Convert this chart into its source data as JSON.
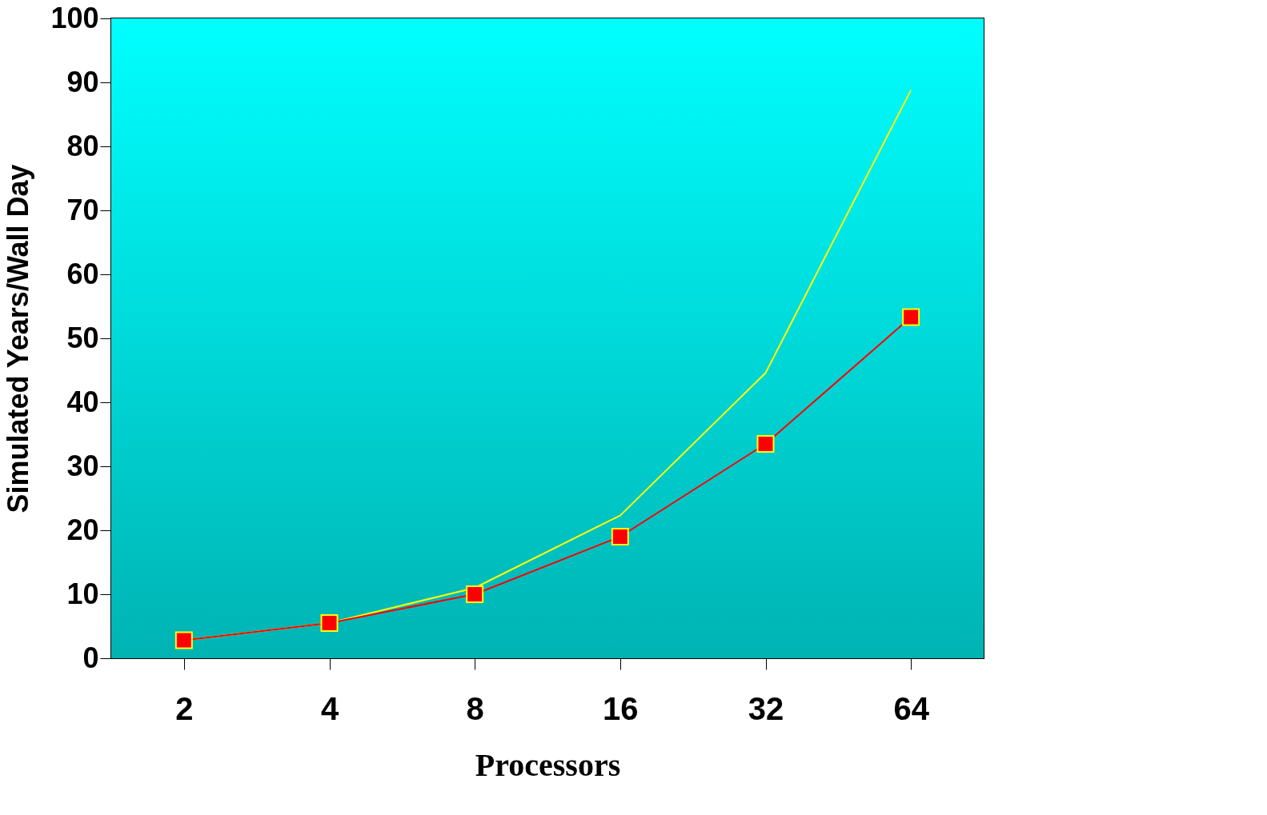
{
  "chart_data": {
    "type": "line",
    "xlabel": "Processors",
    "ylabel": "Simulated Years/Wall Day",
    "categories": [
      "2",
      "4",
      "8",
      "16",
      "32",
      "64"
    ],
    "series": [
      {
        "color": "#ffff00",
        "marker": "none",
        "values": [
          2.8,
          5.5,
          11,
          22.3,
          44.6,
          88.8
        ]
      },
      {
        "color": "#ff0000",
        "marker": "square",
        "values": [
          2.8,
          5.5,
          10,
          19,
          33.5,
          53.3
        ]
      }
    ],
    "ylim": [
      0,
      100
    ],
    "yticks": [
      0,
      10,
      20,
      30,
      40,
      50,
      60,
      70,
      80,
      90,
      100
    ],
    "grid": false
  }
}
